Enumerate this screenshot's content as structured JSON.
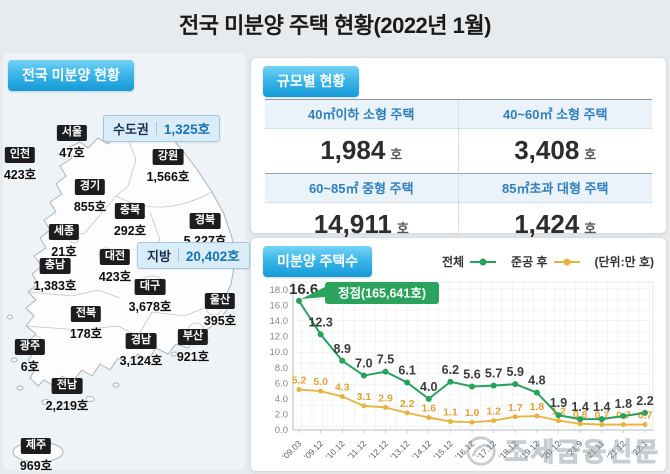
{
  "title": "전국 미분양 주택 현황(2022년 1월)",
  "map_panel": {
    "header": "전국 미분양 현황",
    "summary_boxes": [
      {
        "label": "수도권",
        "value": "1,325호"
      },
      {
        "label": "지방",
        "value": "20,402호"
      }
    ],
    "regions": [
      {
        "name": "서울",
        "value": "47호"
      },
      {
        "name": "인천",
        "value": "423호"
      },
      {
        "name": "경기",
        "value": "855호"
      },
      {
        "name": "강원",
        "value": "1,566호"
      },
      {
        "name": "충북",
        "value": "292호"
      },
      {
        "name": "경북",
        "value": "5,227호"
      },
      {
        "name": "세종",
        "value": "21호"
      },
      {
        "name": "대전",
        "value": "423호"
      },
      {
        "name": "충남",
        "value": "1,383호"
      },
      {
        "name": "대구",
        "value": "3,678호"
      },
      {
        "name": "울산",
        "value": "395호"
      },
      {
        "name": "전북",
        "value": "178호"
      },
      {
        "name": "경남",
        "value": "3,124호"
      },
      {
        "name": "부산",
        "value": "921호"
      },
      {
        "name": "광주",
        "value": "6호"
      },
      {
        "name": "전남",
        "value": "2,219호"
      },
      {
        "name": "제주",
        "value": "969호"
      }
    ]
  },
  "size_panel": {
    "header": "규모별 현황",
    "cells": [
      {
        "label": "40㎡이하 소형 주택",
        "value": "1,984",
        "unit": "호"
      },
      {
        "label": "40~60㎡ 소형 주택",
        "value": "3,408",
        "unit": "호"
      },
      {
        "label": "60~85㎡ 중형 주택",
        "value": "14,911",
        "unit": "호"
      },
      {
        "label": "85㎡초과 대형 주택",
        "value": "1,424",
        "unit": "호"
      }
    ]
  },
  "chart_panel": {
    "header": "미분양 주택수",
    "unit_note": "(단위:만 호)"
  },
  "chart_data": {
    "type": "line",
    "title": "미분양 주택수",
    "x": [
      "'09.03",
      "'09.12",
      "'10.12",
      "'11.12",
      "'12.12",
      "'13.12",
      "'14.12",
      "'15.12",
      "'16.12",
      "'17.12",
      "'18.12",
      "'19.12",
      "'20.12",
      "'21.9",
      "'21.11",
      "'21.12",
      "'22.1"
    ],
    "series": [
      {
        "name": "전체",
        "color": "#27a15b",
        "values": [
          16.6,
          12.3,
          8.9,
          7.0,
          7.5,
          6.1,
          4.0,
          6.2,
          5.6,
          5.7,
          5.9,
          4.8,
          1.9,
          1.4,
          1.4,
          1.8,
          2.2
        ]
      },
      {
        "name": "준공 후",
        "color": "#eab23c",
        "values": [
          5.2,
          5.0,
          4.3,
          3.1,
          2.9,
          2.2,
          1.6,
          1.1,
          1.0,
          1.2,
          1.7,
          1.8,
          1.2,
          0.8,
          0.7,
          0.7,
          0.7
        ]
      }
    ],
    "ylim": [
      0,
      18
    ],
    "ytick_step": 2,
    "unit": "만 호",
    "grid": true,
    "legend_position": "top-right",
    "annotation": {
      "text": "정점(165,641호)",
      "value": 165641,
      "at_x": "'09.03"
    }
  },
  "watermark": {
    "text": "조세금융신문"
  }
}
